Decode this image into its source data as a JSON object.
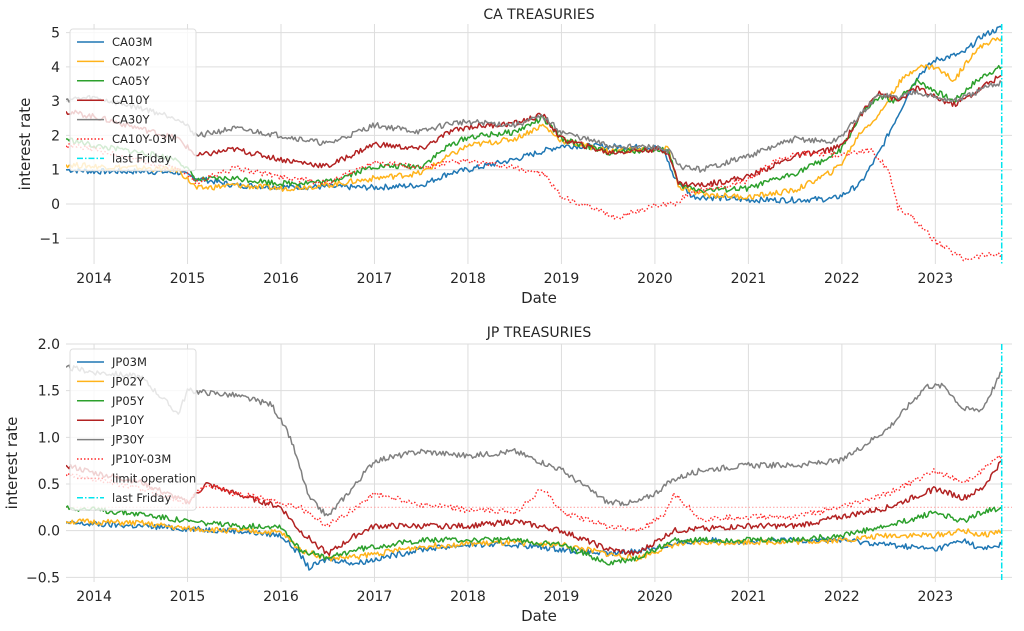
{
  "chart_data": [
    {
      "type": "line",
      "title": "CA TREASURIES",
      "xlabel": "Date",
      "ylabel": "interest rate",
      "xlim": [
        2013.7,
        2023.82
      ],
      "ylim": [
        -1.75,
        5.25
      ],
      "x_ticks": [
        2014,
        2015,
        2016,
        2017,
        2018,
        2019,
        2020,
        2021,
        2022,
        2023
      ],
      "x_tick_labels": [
        "2014",
        "2015",
        "2016",
        "2017",
        "2018",
        "2019",
        "2020",
        "2021",
        "2022",
        "2023"
      ],
      "y_ticks": [
        -1,
        0,
        1,
        2,
        3,
        4,
        5
      ],
      "y_tick_labels": [
        "−1",
        "0",
        "1",
        "2",
        "3",
        "4",
        "5"
      ],
      "grid": true,
      "legend_position": "top-left",
      "last_friday": 2023.71,
      "series": [
        {
          "name": "CA03M",
          "color": "#1f77b4",
          "style": "solid",
          "x": [
            2013.7,
            2014.0,
            2014.5,
            2014.9,
            2015.1,
            2015.5,
            2016.0,
            2016.5,
            2017.0,
            2017.5,
            2017.8,
            2018.0,
            2018.5,
            2019.0,
            2019.5,
            2020.0,
            2020.1,
            2020.2,
            2020.4,
            2021.0,
            2021.5,
            2021.9,
            2022.0,
            2022.2,
            2022.4,
            2022.6,
            2022.8,
            2023.0,
            2023.3,
            2023.5,
            2023.71
          ],
          "y": [
            1.0,
            0.95,
            0.95,
            0.92,
            0.75,
            0.55,
            0.5,
            0.5,
            0.48,
            0.55,
            0.9,
            1.0,
            1.3,
            1.7,
            1.68,
            1.65,
            1.55,
            0.8,
            0.22,
            0.12,
            0.12,
            0.15,
            0.25,
            0.6,
            1.5,
            2.6,
            3.7,
            4.2,
            4.4,
            4.9,
            5.15
          ]
        },
        {
          "name": "CA02Y",
          "color": "#ffb31a",
          "style": "solid",
          "x": [
            2013.7,
            2014.0,
            2014.5,
            2014.9,
            2015.1,
            2015.5,
            2016.0,
            2016.5,
            2017.0,
            2017.5,
            2017.8,
            2018.0,
            2018.5,
            2018.8,
            2019.0,
            2019.5,
            2020.0,
            2020.15,
            2020.25,
            2020.5,
            2021.0,
            2021.5,
            2021.9,
            2022.0,
            2022.2,
            2022.4,
            2022.6,
            2022.8,
            2023.0,
            2023.2,
            2023.4,
            2023.55,
            2023.71
          ],
          "y": [
            1.15,
            1.1,
            1.05,
            1.0,
            0.45,
            0.55,
            0.45,
            0.55,
            0.75,
            0.9,
            1.4,
            1.7,
            1.9,
            2.3,
            1.85,
            1.55,
            1.6,
            1.6,
            0.5,
            0.28,
            0.2,
            0.4,
            0.95,
            1.2,
            2.1,
            2.6,
            3.5,
            4.0,
            4.0,
            3.6,
            4.4,
            4.7,
            4.85
          ]
        },
        {
          "name": "CA05Y",
          "color": "#2ca02c",
          "style": "solid",
          "x": [
            2013.7,
            2014.0,
            2014.5,
            2014.9,
            2015.1,
            2015.5,
            2016.0,
            2016.5,
            2017.0,
            2017.5,
            2017.8,
            2018.0,
            2018.5,
            2018.8,
            2019.0,
            2019.5,
            2020.0,
            2020.15,
            2020.25,
            2020.5,
            2021.0,
            2021.5,
            2021.9,
            2022.0,
            2022.2,
            2022.4,
            2022.6,
            2022.8,
            2023.0,
            2023.2,
            2023.4,
            2023.55,
            2023.71
          ],
          "y": [
            1.9,
            1.7,
            1.5,
            1.3,
            0.7,
            0.75,
            0.6,
            0.65,
            1.1,
            1.1,
            1.7,
            1.95,
            2.1,
            2.5,
            1.9,
            1.5,
            1.6,
            1.55,
            0.55,
            0.4,
            0.45,
            0.9,
            1.4,
            1.6,
            2.6,
            3.1,
            3.0,
            3.6,
            3.3,
            3.0,
            3.5,
            3.8,
            4.0
          ]
        },
        {
          "name": "CA10Y",
          "color": "#b22222",
          "style": "solid",
          "x": [
            2013.7,
            2014.0,
            2014.5,
            2014.9,
            2015.1,
            2015.5,
            2016.0,
            2016.5,
            2017.0,
            2017.5,
            2017.8,
            2018.0,
            2018.5,
            2018.8,
            2019.0,
            2019.5,
            2020.0,
            2020.15,
            2020.25,
            2020.5,
            2021.0,
            2021.5,
            2021.9,
            2022.0,
            2022.2,
            2022.4,
            2022.6,
            2022.8,
            2023.0,
            2023.2,
            2023.4,
            2023.55,
            2023.71
          ],
          "y": [
            2.7,
            2.55,
            2.2,
            1.9,
            1.4,
            1.6,
            1.3,
            1.1,
            1.75,
            1.6,
            2.1,
            2.25,
            2.35,
            2.6,
            1.9,
            1.5,
            1.6,
            1.5,
            0.6,
            0.55,
            0.8,
            1.4,
            1.6,
            1.7,
            2.6,
            3.3,
            3.0,
            3.4,
            3.1,
            2.9,
            3.2,
            3.5,
            3.75
          ]
        },
        {
          "name": "CA30Y",
          "color": "#808080",
          "style": "solid",
          "x": [
            2013.7,
            2014.0,
            2014.5,
            2014.9,
            2015.1,
            2015.5,
            2016.0,
            2016.5,
            2017.0,
            2017.5,
            2017.8,
            2018.0,
            2018.5,
            2018.8,
            2019.0,
            2019.5,
            2020.0,
            2020.15,
            2020.25,
            2020.5,
            2021.0,
            2021.5,
            2021.9,
            2022.0,
            2022.2,
            2022.4,
            2022.6,
            2022.8,
            2023.0,
            2023.2,
            2023.4,
            2023.55,
            2023.71
          ],
          "y": [
            3.05,
            3.1,
            2.8,
            2.5,
            2.0,
            2.2,
            2.0,
            1.75,
            2.3,
            2.1,
            2.35,
            2.4,
            2.3,
            2.55,
            2.1,
            1.7,
            1.65,
            1.55,
            1.1,
            1.0,
            1.4,
            1.9,
            1.8,
            2.0,
            2.6,
            3.2,
            3.1,
            3.3,
            3.1,
            3.0,
            3.2,
            3.4,
            3.55
          ]
        },
        {
          "name": "CA10Y-03M",
          "color": "#ff2a2a",
          "style": "dotted",
          "x": [
            2013.7,
            2014.0,
            2014.5,
            2014.9,
            2015.1,
            2015.5,
            2016.0,
            2016.5,
            2017.0,
            2017.5,
            2017.8,
            2018.0,
            2018.5,
            2018.8,
            2019.0,
            2019.3,
            2019.6,
            2019.8,
            2020.0,
            2020.2,
            2020.4,
            2020.7,
            2021.0,
            2021.3,
            2021.6,
            2021.9,
            2022.1,
            2022.3,
            2022.5,
            2022.6,
            2022.8,
            2023.0,
            2023.3,
            2023.5,
            2023.71
          ],
          "y": [
            1.7,
            1.6,
            1.25,
            1.0,
            0.65,
            1.05,
            0.8,
            0.6,
            1.25,
            1.05,
            1.2,
            1.25,
            1.05,
            0.9,
            0.2,
            -0.1,
            -0.4,
            -0.2,
            -0.05,
            0.0,
            0.35,
            0.5,
            0.7,
            1.3,
            1.5,
            1.45,
            1.45,
            1.6,
            1.0,
            -0.1,
            -0.5,
            -1.1,
            -1.6,
            -1.5,
            -1.45
          ]
        }
      ]
    },
    {
      "type": "line",
      "title": "JP TREASURIES",
      "xlabel": "Date",
      "ylabel": "interest rate",
      "xlim": [
        2013.7,
        2023.82
      ],
      "ylim": [
        -0.55,
        2.0
      ],
      "x_ticks": [
        2014,
        2015,
        2016,
        2017,
        2018,
        2019,
        2020,
        2021,
        2022,
        2023
      ],
      "x_tick_labels": [
        "2014",
        "2015",
        "2016",
        "2017",
        "2018",
        "2019",
        "2020",
        "2021",
        "2022",
        "2023"
      ],
      "y_ticks": [
        -0.5,
        0.0,
        0.5,
        1.0,
        1.5,
        2.0
      ],
      "y_tick_labels": [
        "−0.5",
        "0.0",
        "0.5",
        "1.0",
        "1.5",
        "2.0"
      ],
      "grid": true,
      "legend_position": "top-left",
      "last_friday": 2023.71,
      "limit_operation": 0.25,
      "series": [
        {
          "name": "JP03M",
          "color": "#1f77b4",
          "style": "solid",
          "x": [
            2013.7,
            2014.5,
            2015.0,
            2015.5,
            2016.0,
            2016.2,
            2016.3,
            2016.5,
            2016.8,
            2017.5,
            2018.0,
            2018.5,
            2019.0,
            2019.5,
            2019.9,
            2020.2,
            2020.5,
            2021.0,
            2021.5,
            2022.0,
            2022.5,
            2023.0,
            2023.3,
            2023.5,
            2023.71
          ],
          "y": [
            0.08,
            0.05,
            0.02,
            0.0,
            -0.05,
            -0.25,
            -0.4,
            -0.3,
            -0.35,
            -0.2,
            -0.15,
            -0.15,
            -0.2,
            -0.25,
            -0.2,
            -0.15,
            -0.1,
            -0.12,
            -0.1,
            -0.1,
            -0.15,
            -0.2,
            -0.1,
            -0.2,
            -0.15
          ]
        },
        {
          "name": "JP02Y",
          "color": "#ffb31a",
          "style": "solid",
          "x": [
            2013.7,
            2014.5,
            2015.0,
            2015.5,
            2016.0,
            2016.2,
            2016.5,
            2016.8,
            2017.5,
            2018.0,
            2018.5,
            2019.0,
            2019.5,
            2019.8,
            2020.2,
            2020.5,
            2021.0,
            2021.5,
            2022.0,
            2022.5,
            2023.0,
            2023.3,
            2023.5,
            2023.71
          ],
          "y": [
            0.1,
            0.08,
            0.02,
            0.0,
            -0.02,
            -0.2,
            -0.3,
            -0.28,
            -0.17,
            -0.14,
            -0.13,
            -0.15,
            -0.25,
            -0.3,
            -0.15,
            -0.13,
            -0.12,
            -0.12,
            -0.1,
            -0.05,
            -0.05,
            0.0,
            -0.05,
            0.0
          ]
        },
        {
          "name": "JP05Y",
          "color": "#2ca02c",
          "style": "solid",
          "x": [
            2013.7,
            2014.5,
            2015.0,
            2015.5,
            2016.0,
            2016.2,
            2016.5,
            2016.8,
            2017.5,
            2018.0,
            2018.5,
            2019.0,
            2019.5,
            2019.8,
            2020.2,
            2020.5,
            2021.0,
            2021.5,
            2022.0,
            2022.5,
            2023.0,
            2023.3,
            2023.5,
            2023.71
          ],
          "y": [
            0.25,
            0.18,
            0.1,
            0.05,
            0.05,
            -0.2,
            -0.3,
            -0.2,
            -0.1,
            -0.1,
            -0.1,
            -0.15,
            -0.35,
            -0.3,
            -0.1,
            -0.1,
            -0.1,
            -0.1,
            -0.05,
            0.05,
            0.2,
            0.1,
            0.2,
            0.25
          ]
        },
        {
          "name": "JP10Y",
          "color": "#b22222",
          "style": "solid",
          "x": [
            2013.7,
            2014.0,
            2014.5,
            2015.0,
            2015.2,
            2015.5,
            2016.0,
            2016.2,
            2016.5,
            2016.8,
            2017.0,
            2017.5,
            2018.0,
            2018.5,
            2019.0,
            2019.5,
            2019.8,
            2020.2,
            2020.5,
            2021.0,
            2021.5,
            2022.0,
            2022.5,
            2023.0,
            2023.3,
            2023.5,
            2023.71
          ],
          "y": [
            0.7,
            0.62,
            0.52,
            0.3,
            0.5,
            0.4,
            0.25,
            0.0,
            -0.25,
            -0.05,
            0.05,
            0.05,
            0.05,
            0.1,
            0.0,
            -0.2,
            -0.25,
            0.0,
            0.02,
            0.05,
            0.05,
            0.15,
            0.25,
            0.45,
            0.35,
            0.45,
            0.75
          ]
        },
        {
          "name": "JP30Y",
          "color": "#808080",
          "style": "solid",
          "x": [
            2013.7,
            2014.0,
            2014.5,
            2014.9,
            2015.0,
            2015.5,
            2015.9,
            2016.1,
            2016.3,
            2016.5,
            2016.8,
            2017.0,
            2017.5,
            2018.0,
            2018.5,
            2019.0,
            2019.5,
            2019.8,
            2020.0,
            2020.2,
            2020.5,
            2021.0,
            2021.5,
            2022.0,
            2022.5,
            2022.9,
            2023.1,
            2023.3,
            2023.5,
            2023.71
          ],
          "y": [
            1.75,
            1.7,
            1.65,
            1.25,
            1.5,
            1.45,
            1.35,
            1.0,
            0.35,
            0.15,
            0.5,
            0.75,
            0.85,
            0.8,
            0.85,
            0.65,
            0.3,
            0.3,
            0.4,
            0.55,
            0.65,
            0.7,
            0.7,
            0.75,
            1.1,
            1.55,
            1.55,
            1.3,
            1.3,
            1.7
          ]
        },
        {
          "name": "JP10Y-03M",
          "color": "#ff2a2a",
          "style": "dotted",
          "x": [
            2013.7,
            2014.0,
            2014.5,
            2015.0,
            2015.2,
            2015.5,
            2016.0,
            2016.2,
            2016.5,
            2016.8,
            2017.0,
            2017.5,
            2018.0,
            2018.5,
            2018.8,
            2019.0,
            2019.5,
            2019.8,
            2020.1,
            2020.2,
            2020.5,
            2021.0,
            2021.5,
            2022.0,
            2022.5,
            2023.0,
            2023.3,
            2023.5,
            2023.71
          ],
          "y": [
            0.6,
            0.55,
            0.45,
            0.3,
            0.5,
            0.4,
            0.3,
            0.25,
            0.05,
            0.25,
            0.4,
            0.28,
            0.22,
            0.2,
            0.45,
            0.2,
            0.05,
            0.0,
            0.15,
            0.4,
            0.12,
            0.15,
            0.15,
            0.25,
            0.4,
            0.65,
            0.5,
            0.65,
            0.8
          ]
        }
      ]
    }
  ]
}
